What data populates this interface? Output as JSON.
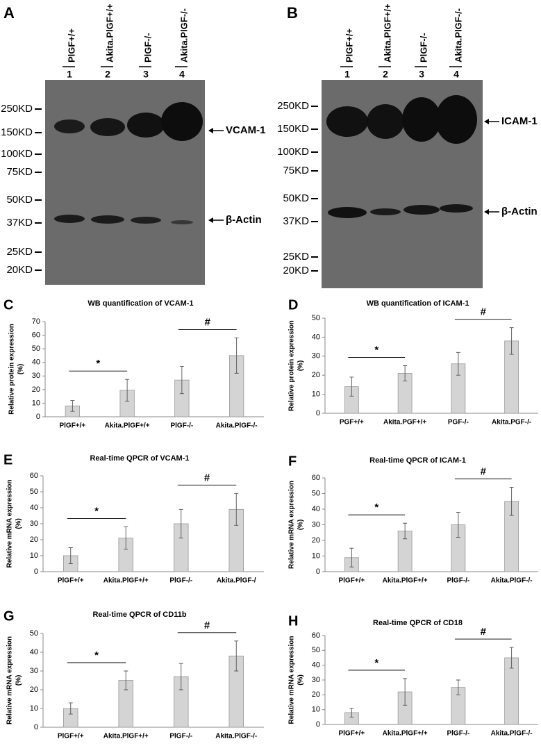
{
  "blots": [
    {
      "letter": "A",
      "lanes": [
        {
          "label": "PlGF+/+",
          "number": "1"
        },
        {
          "label": "Akita.PlGF+/+",
          "number": "2"
        },
        {
          "label": "PlGF-/-",
          "number": "3"
        },
        {
          "label": "Akita.PlGF-/-",
          "number": "4"
        }
      ],
      "markers": [
        "250KD",
        "150KD",
        "100KD",
        "75KD",
        "50KD",
        "37KD",
        "25KD",
        "20KD"
      ],
      "bands": [
        "VCAM-1",
        "β-Actin"
      ]
    },
    {
      "letter": "B",
      "lanes": [
        {
          "label": "PlGF+/+",
          "number": "1"
        },
        {
          "label": "Akita.PlGF+/+",
          "number": "2"
        },
        {
          "label": "PlGF-/-",
          "number": "3"
        },
        {
          "label": "Akita.PlGF-/-",
          "number": "4"
        }
      ],
      "markers": [
        "250KD",
        "150KD",
        "100KD",
        "75KD",
        "50KD",
        "37KD",
        "25KD",
        "20KD"
      ],
      "bands": [
        "ICAM-1",
        "β-Actin"
      ]
    }
  ],
  "chart_data": [
    {
      "type": "bar",
      "letter": "C",
      "title": "WB quantification of VCAM-1",
      "ylabel": [
        "Relative protein expression",
        "(%)"
      ],
      "categories": [
        "PlGF+/+",
        "Akita.PlGF+/+",
        "PlGF-/-",
        "Akita.PlGF-/-"
      ],
      "values": [
        8,
        19.5,
        27,
        45
      ],
      "errors": [
        4,
        8,
        10,
        13
      ],
      "ylim": [
        0,
        70
      ],
      "yticks": [
        0,
        10,
        20,
        30,
        40,
        50,
        60,
        70
      ],
      "annotations": [
        "*",
        "#"
      ],
      "color": "#d4d4d4"
    },
    {
      "type": "bar",
      "letter": "D",
      "title": "WB quantification of ICAM-1",
      "ylabel": [
        "Relative protein expression",
        "(%)"
      ],
      "categories": [
        "PGF+/+",
        "Akita.PGF+/+",
        "PGF-/-",
        "Akita.PGF-/-"
      ],
      "values": [
        14,
        21,
        26,
        38
      ],
      "errors": [
        5,
        4,
        6,
        7
      ],
      "ylim": [
        0,
        50
      ],
      "yticks": [
        0,
        10,
        20,
        30,
        40,
        50
      ],
      "annotations": [
        "*",
        "#"
      ],
      "color": "#d4d4d4"
    },
    {
      "type": "bar",
      "letter": "E",
      "title": "Real-time QPCR of VCAM-1",
      "ylabel": [
        "Relative mRNA expression",
        "(%)"
      ],
      "categories": [
        "PlGF+/+",
        "Akita.PlGF+/+",
        "PlGF-/-",
        "Akita.PlGF-/"
      ],
      "values": [
        10,
        21,
        30,
        39
      ],
      "errors": [
        5,
        7,
        9,
        10
      ],
      "ylim": [
        0,
        60
      ],
      "yticks": [
        0,
        10,
        20,
        30,
        40,
        50,
        60
      ],
      "annotations": [
        "*",
        "#"
      ],
      "color": "#d4d4d4"
    },
    {
      "type": "bar",
      "letter": "F",
      "title": "Real-time QPCR of ICAM-1",
      "ylabel": [
        "Relative mRNA expression",
        "(%)"
      ],
      "categories": [
        "PlGF+/+",
        "Akita.PlGF+/+",
        "PlGF-/-",
        "Akita.PlGF-/-"
      ],
      "values": [
        9,
        26,
        30,
        45
      ],
      "errors": [
        6,
        5,
        8,
        9
      ],
      "ylim": [
        0,
        60
      ],
      "yticks": [
        0,
        10,
        20,
        30,
        40,
        50,
        60
      ],
      "annotations": [
        "*",
        "#"
      ],
      "color": "#d4d4d4"
    },
    {
      "type": "bar",
      "letter": "G",
      "title": "Real-time QPCR of CD11b",
      "ylabel": [
        "Relative mRNA expression",
        "(%)"
      ],
      "categories": [
        "PlGF+/+",
        "Akita.PlGF+/+",
        "PlGF-/-",
        "Akita.PlGF-/-"
      ],
      "values": [
        10,
        25,
        27,
        38
      ],
      "errors": [
        3,
        5,
        7,
        8
      ],
      "ylim": [
        0,
        50
      ],
      "yticks": [
        0,
        10,
        20,
        30,
        40,
        50
      ],
      "annotations": [
        "*",
        "#"
      ],
      "color": "#d4d4d4"
    },
    {
      "type": "bar",
      "letter": "H",
      "title": "Real-time QPCR of CD18",
      "ylabel": [
        "Relative mRNA expression",
        "(%)"
      ],
      "categories": [
        "PlGF+/+",
        "Akita.PlGF+/+",
        "PlGF-/-",
        "Akita.PlGF-/-"
      ],
      "values": [
        8,
        22,
        25,
        45
      ],
      "errors": [
        3,
        9,
        5,
        7
      ],
      "ylim": [
        0,
        60
      ],
      "yticks": [
        0,
        10,
        20,
        30,
        40,
        50,
        60
      ],
      "annotations": [
        "*",
        "#"
      ],
      "color": "#d4d4d4"
    }
  ]
}
